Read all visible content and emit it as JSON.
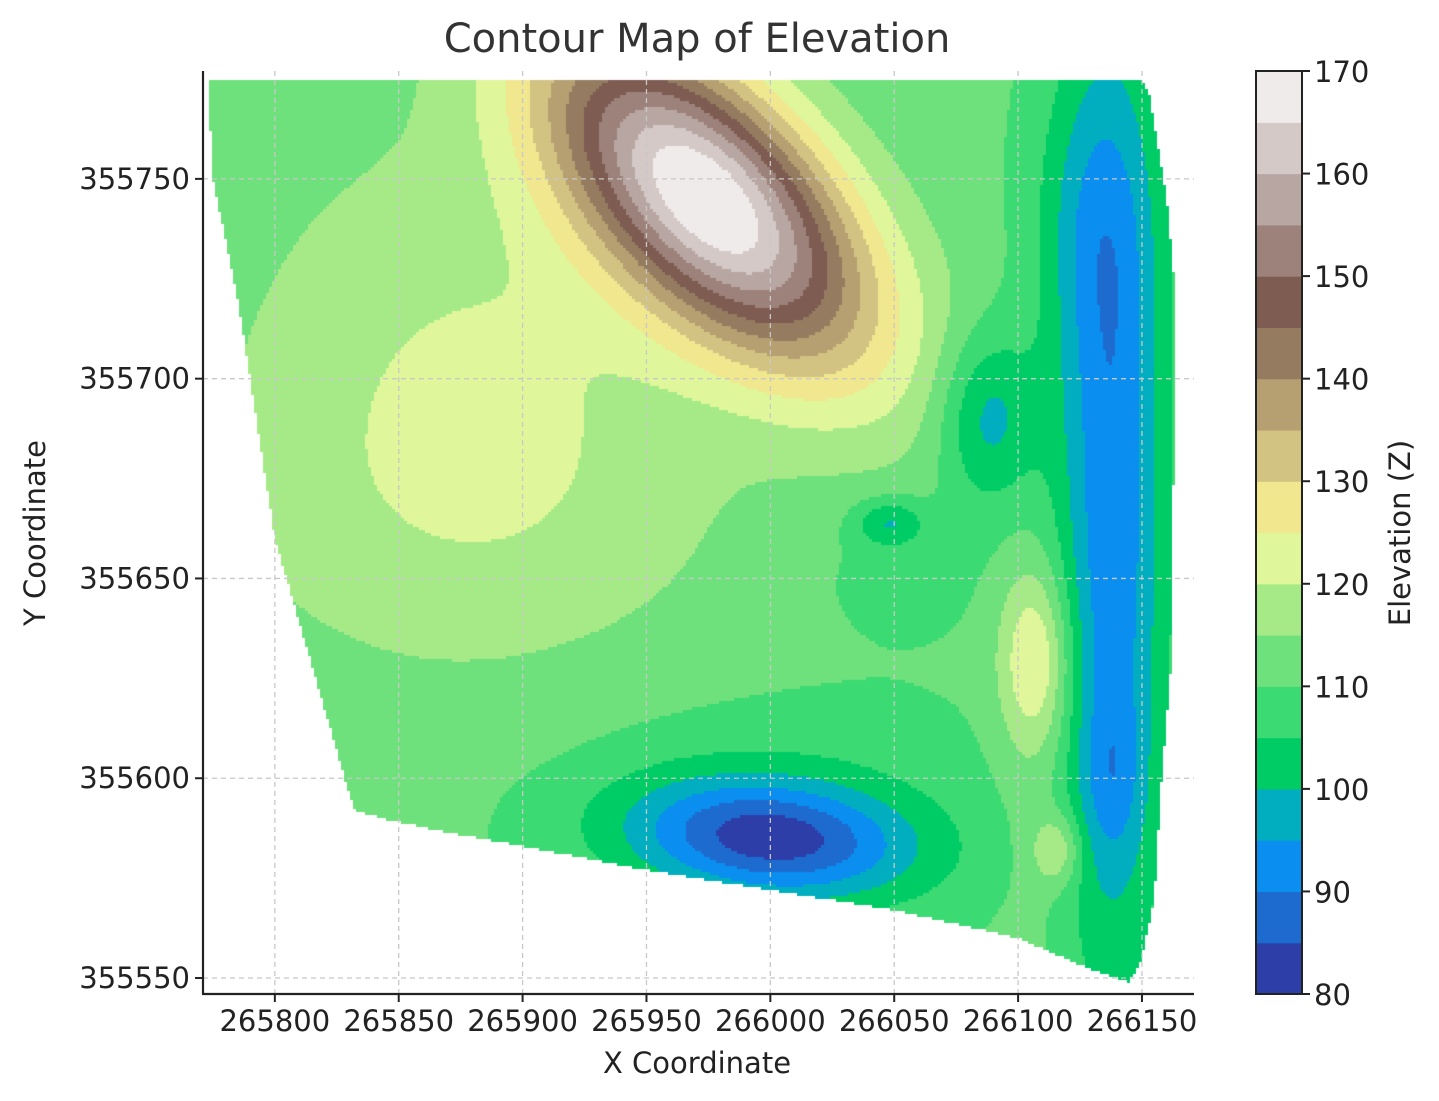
{
  "chart_data": {
    "type": "contour",
    "title": "Contour Map of Elevation",
    "xlabel": "X Coordinate",
    "ylabel": "Y Coordinate",
    "xlim": [
      265771,
      266171
    ],
    "ylim": [
      355546,
      355777
    ],
    "x_ticks": [
      265800,
      265850,
      265900,
      265950,
      266000,
      266050,
      266100,
      266150
    ],
    "x_tick_labels": [
      "265800",
      "265850",
      "265900",
      "265950",
      "266000",
      "266050",
      "266100",
      "266150"
    ],
    "y_ticks": [
      355550,
      355600,
      355650,
      355700,
      355750
    ],
    "y_tick_labels": [
      "355550",
      "355600",
      "355650",
      "355700",
      "355750"
    ],
    "grid": true,
    "colorbar": {
      "label": "Elevation (Z)",
      "min": 80,
      "max": 170,
      "ticks": [
        80,
        90,
        100,
        110,
        120,
        130,
        140,
        150,
        160,
        170
      ],
      "tick_labels": [
        "80",
        "90",
        "100",
        "110",
        "120",
        "130",
        "140",
        "150",
        "160",
        "170"
      ],
      "levels": [
        80,
        85,
        90,
        95,
        100,
        105,
        110,
        115,
        120,
        125,
        130,
        135,
        140,
        145,
        150,
        155,
        160,
        165,
        170
      ],
      "colors": [
        "#2d3ea8",
        "#1e6bd0",
        "#0a8ff0",
        "#00aec0",
        "#00cc66",
        "#3cda72",
        "#6ee07c",
        "#a6ea88",
        "#dff79a",
        "#f0e78f",
        "#d2c382",
        "#b69f70",
        "#957b5f",
        "#7e5c52",
        "#9c827a",
        "#b8a6a2",
        "#d4c9c6",
        "#efebea"
      ]
    },
    "hull": [
      [
        265773,
        355775
      ],
      [
        266150,
        355775
      ],
      [
        266153,
        355771
      ],
      [
        266156,
        355760
      ],
      [
        266160,
        355745
      ],
      [
        266163,
        355725
      ],
      [
        266163,
        355690
      ],
      [
        266162,
        355630
      ],
      [
        266158,
        355600
      ],
      [
        266155,
        355570
      ],
      [
        266150,
        355555
      ],
      [
        266145,
        355549
      ],
      [
        266130,
        355552
      ],
      [
        266100,
        355560
      ],
      [
        266050,
        355567
      ],
      [
        266000,
        355572
      ],
      [
        265950,
        355577
      ],
      [
        265900,
        355583
      ],
      [
        265865,
        355587
      ],
      [
        265843,
        355590
      ],
      [
        265832,
        355592
      ],
      [
        265800,
        355660
      ],
      [
        265785,
        355720
      ],
      [
        265775,
        355750
      ]
    ],
    "peaks": [
      {
        "x": 265975,
        "y": 355748,
        "z": 168
      },
      {
        "x": 266008,
        "y": 355584,
        "z": 88
      },
      {
        "x": 266109,
        "y": 355630,
        "z": 122
      },
      {
        "x": 266116,
        "y": 355580,
        "z": 120
      }
    ],
    "valleys": [
      {
        "x": 266135,
        "y": 355700,
        "z": 82
      },
      {
        "x": 266140,
        "y": 355630,
        "z": 88
      },
      {
        "x": 266130,
        "y": 355600,
        "z": 90
      }
    ]
  }
}
